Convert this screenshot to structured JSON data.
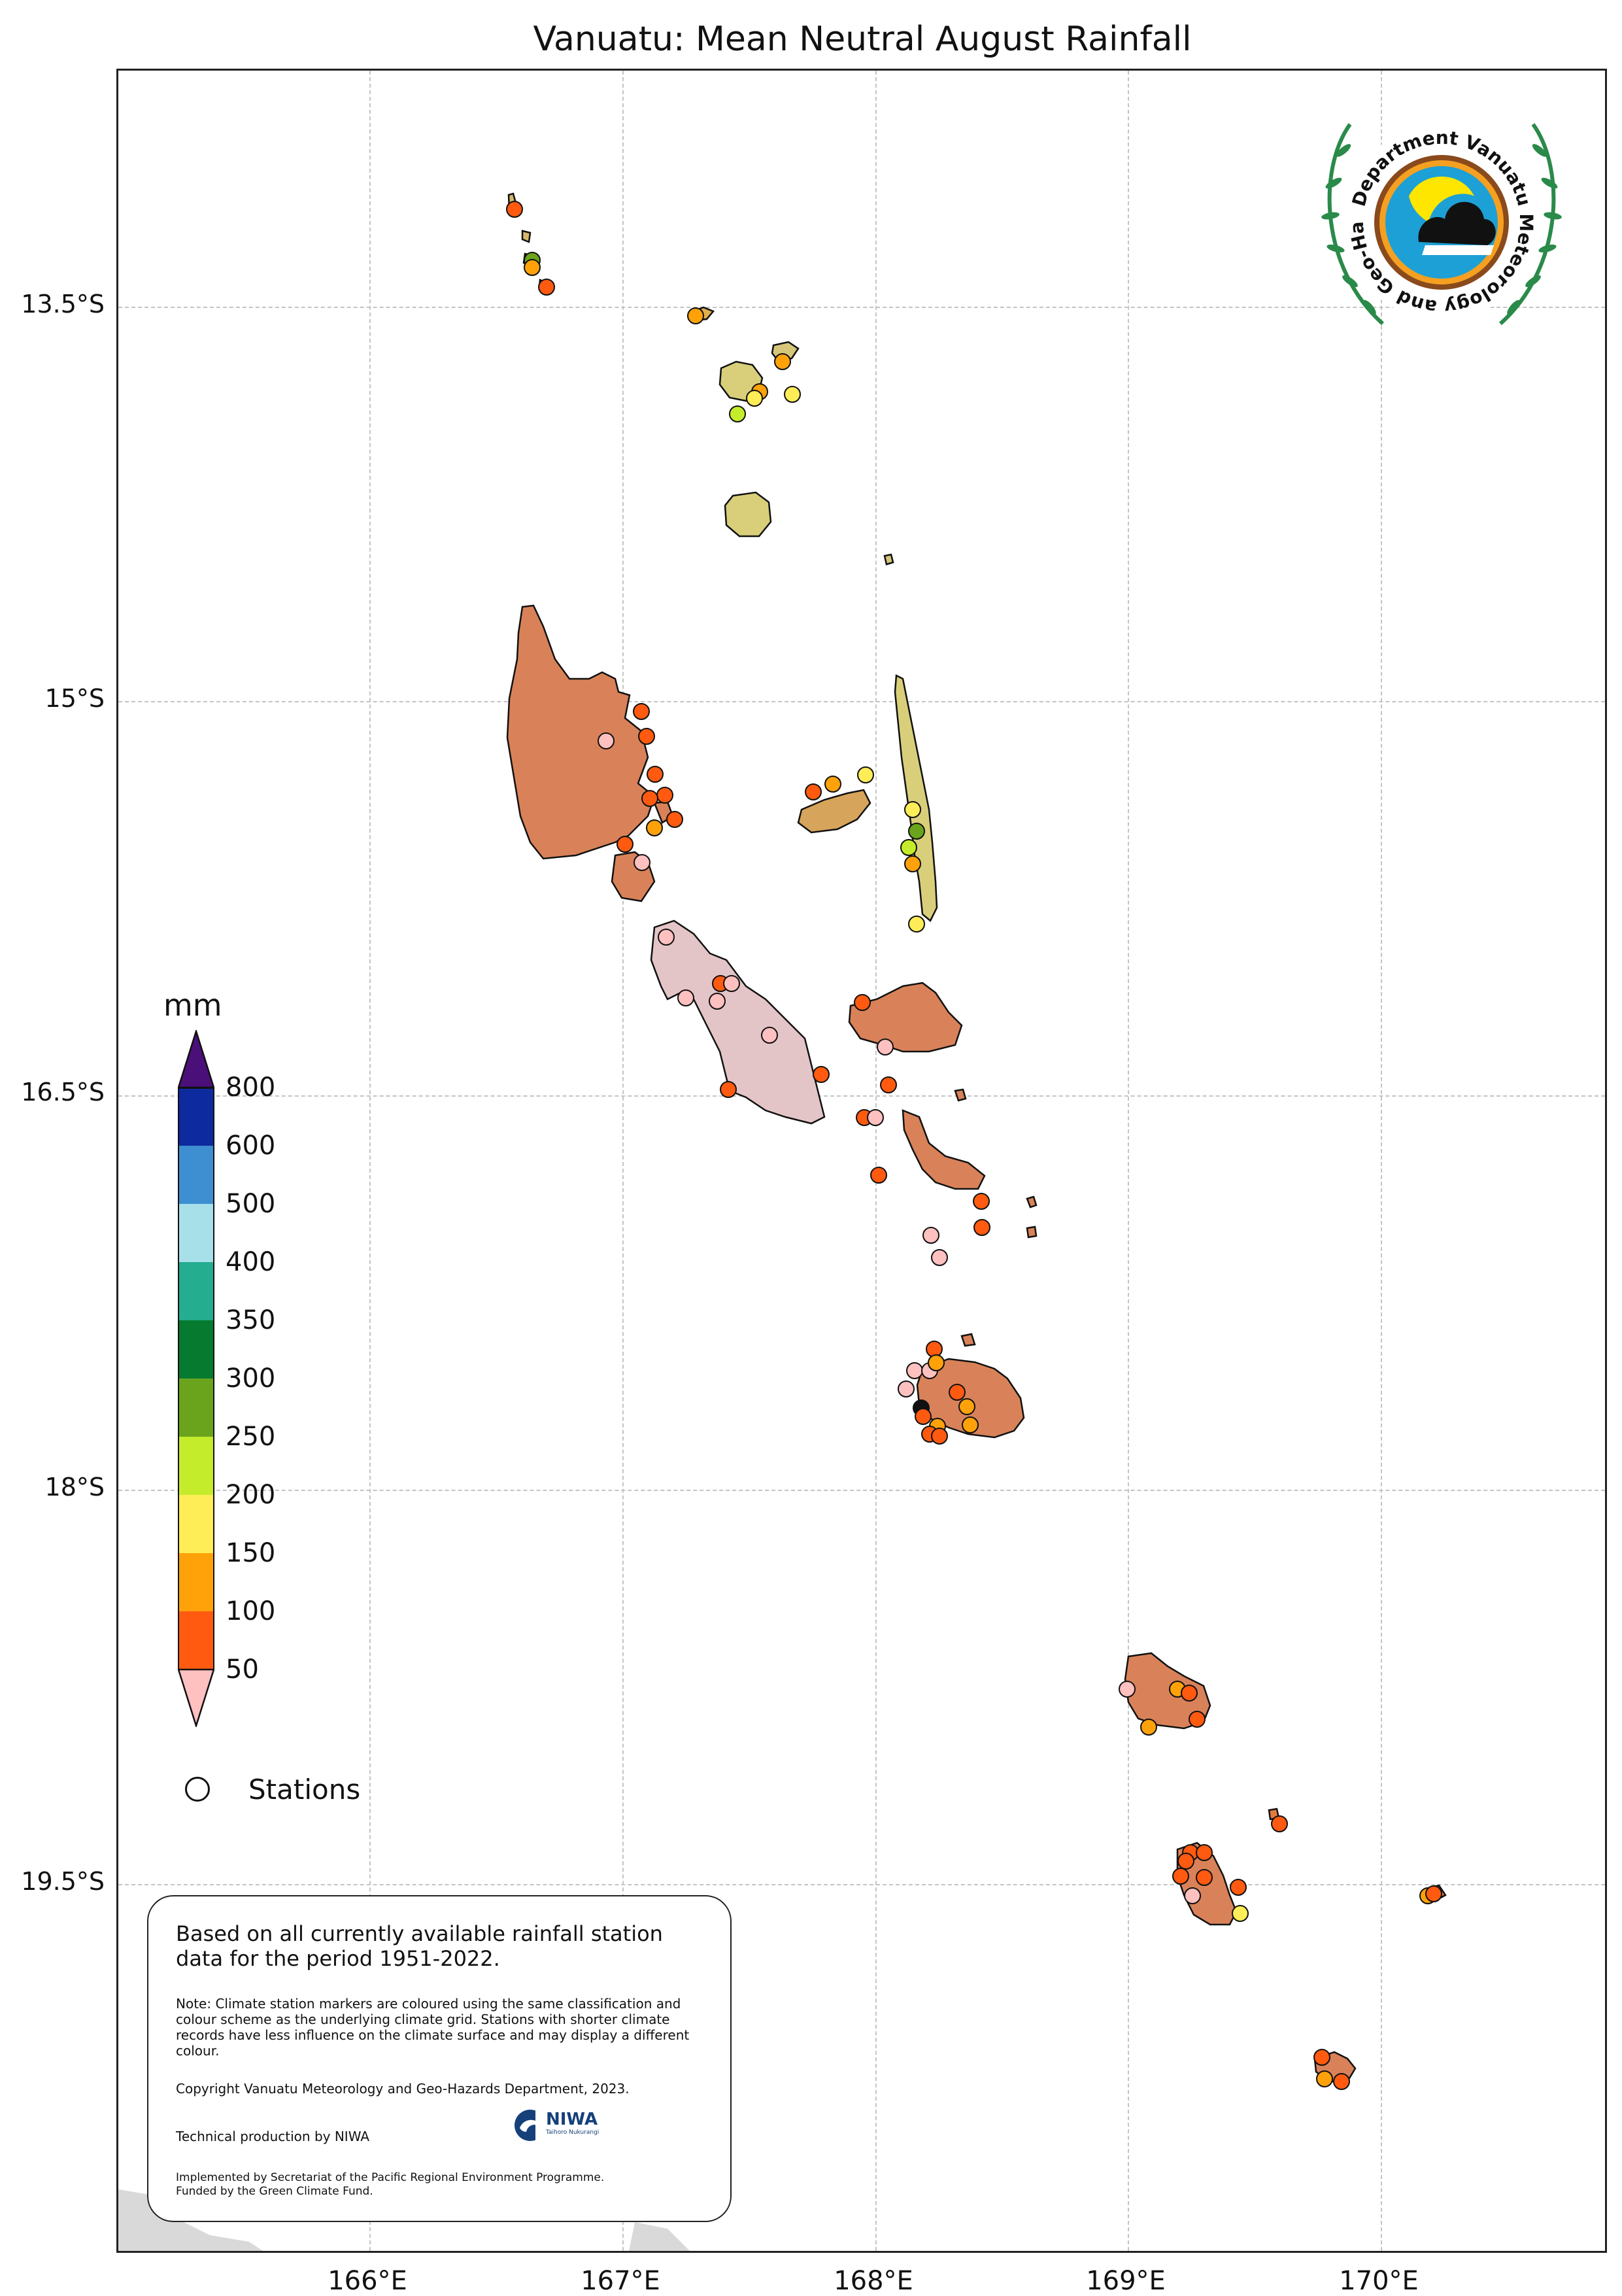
{
  "title": "Vanuatu: Mean Neutral August Rainfall",
  "axes": {
    "lat_ticks": [
      "13.5°S",
      "15°S",
      "16.5°S",
      "18°S",
      "19.5°S"
    ],
    "lon_ticks": [
      "166°E",
      "167°E",
      "168°E",
      "169°E",
      "170°E"
    ]
  },
  "legend": {
    "units": "mm",
    "levels": [
      "800",
      "600",
      "500",
      "400",
      "350",
      "300",
      "250",
      "200",
      "150",
      "100",
      "50"
    ],
    "colors": {
      "gt800": "#4b0f7a",
      "600-800": "#0d2a9e",
      "500-600": "#3d8fd1",
      "400-500": "#a8e0ea",
      "350-400": "#24ad8f",
      "300-350": "#067a2f",
      "250-300": "#6aa41c",
      "200-250": "#c5ec2b",
      "150-200": "#ffed57",
      "100-150": "#ffa20a",
      "50-100": "#ff5a0f",
      "lt50": "#ffc0c0"
    },
    "stations_label": "Stations"
  },
  "info": {
    "main": "Based on all currently available rainfall station data for the period 1951-2022.",
    "note": "Note: Climate station markers are coloured using the same classification and colour scheme as the underlying climate grid. Stations with shorter climate records have less influence on the climate surface and may display a different colour.",
    "copyright": "Copyright Vanuatu Meteorology and Geo-Hazards Department, 2023.",
    "technical": "Technical production by NIWA",
    "implemented": "Implemented by Secretariat of the Pacific Regional Environment Programme.\nFunded by the Green Climate Fund.",
    "niwa_logo_text": "NIWA",
    "niwa_logo_subtext": "Taihoro Nukurangi"
  },
  "logo": {
    "text": "Department Vanuatu Meteorology and Geo-Hazards"
  }
}
